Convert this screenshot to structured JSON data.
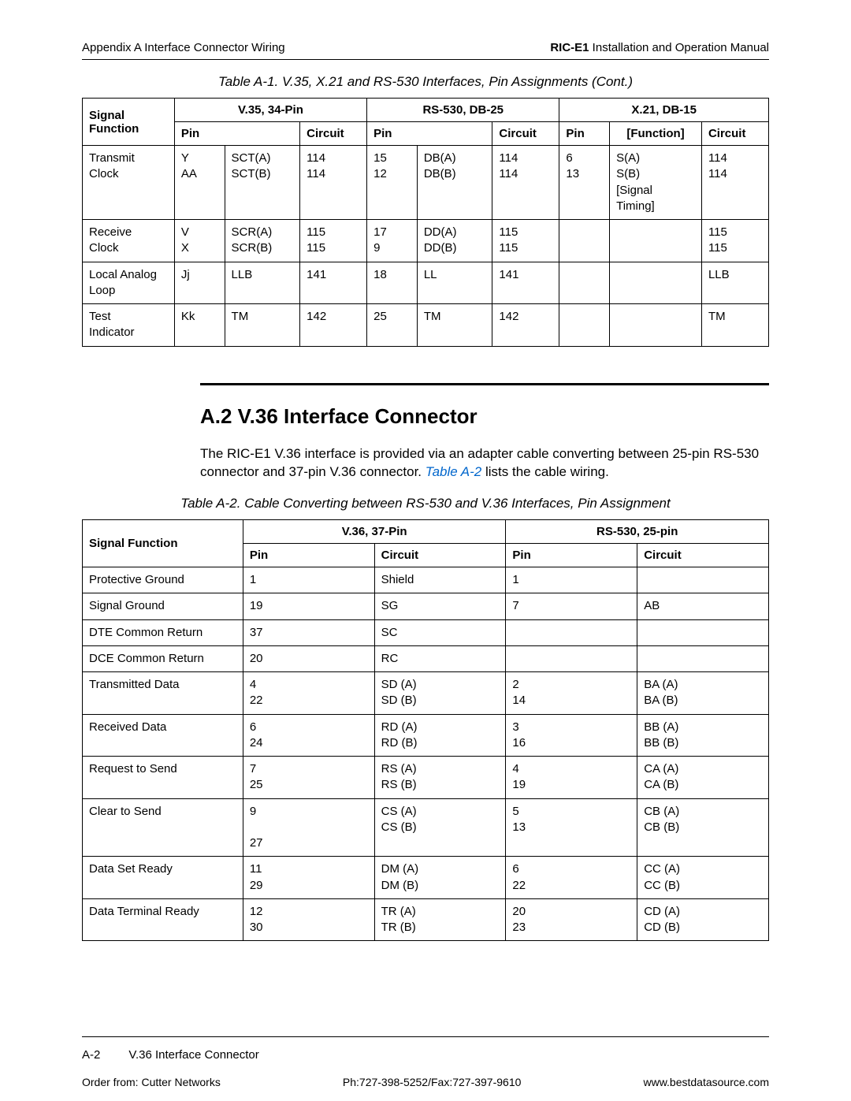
{
  "header": {
    "left": "Appendix A  Interface Connector Wiring",
    "right_bold": "RIC-E1",
    "right_rest": " Installation and Operation Manual"
  },
  "table1": {
    "caption": "Table A-1.  V.35, X.21 and RS-530 Interfaces, Pin Assignments (Cont.)",
    "group_headers": [
      "",
      "V.35, 34-Pin",
      "RS-530, DB-25",
      "X.21, DB-15"
    ],
    "sub_headers": [
      "Signal Function",
      "Pin",
      "",
      "Circuit",
      "Pin",
      "",
      "Circuit",
      "Pin",
      "[Function]",
      "Circuit"
    ],
    "rows": [
      {
        "sf": "Transmit\nClock",
        "p1": "Y\nAA",
        "n1": "SCT(A)\nSCT(B)",
        "c1": "114\n114",
        "p2": "15\n12",
        "n2": "DB(A)\nDB(B)",
        "c2": "114\n114",
        "p3": "6\n13",
        "n3": "S(A)\nS(B)\n[Signal\nTiming]",
        "c3": "114\n114"
      },
      {
        "sf": "Receive\nClock",
        "p1": "V\nX",
        "n1": "SCR(A)\nSCR(B)",
        "c1": "115\n115",
        "p2": "17\n9",
        "n2": "DD(A)\nDD(B)",
        "c2": "115\n115",
        "p3": "",
        "n3": "",
        "c3": "115\n115"
      },
      {
        "sf": "Local Analog\nLoop",
        "p1": "Jj",
        "n1": "LLB",
        "c1": "141",
        "p2": "18",
        "n2": "LL",
        "c2": "141",
        "p3": "",
        "n3": "",
        "c3": "LLB"
      },
      {
        "sf": "Test\nIndicator",
        "p1": "Kk",
        "n1": "TM",
        "c1": "142",
        "p2": "25",
        "n2": "TM",
        "c2": "142",
        "p3": "",
        "n3": "",
        "c3": "TM"
      }
    ]
  },
  "section": {
    "title": "A.2  V.36 Interface Connector",
    "text_pre": "The RIC-E1 V.36 interface is provided via an adapter cable converting between 25-pin RS-530 connector and 37-pin V.36 connector. ",
    "link": "Table A-2",
    "text_post": " lists the cable wiring."
  },
  "table2": {
    "caption": "Table A-2.  Cable Converting between RS-530 and V.36 Interfaces, Pin Assignment",
    "group_headers": [
      "Signal Function",
      "V.36, 37-Pin",
      "RS-530, 25-pin"
    ],
    "sub_headers": [
      "Pin",
      "Circuit",
      "Pin",
      "Circuit"
    ],
    "rows": [
      {
        "sf": "Protective Ground",
        "p1": "1",
        "c1": "Shield",
        "p2": "1",
        "c2": ""
      },
      {
        "sf": "Signal Ground",
        "p1": "19",
        "c1": "SG",
        "p2": "7",
        "c2": "AB"
      },
      {
        "sf": "DTE Common Return",
        "p1": "37",
        "c1": "SC",
        "p2": "",
        "c2": ""
      },
      {
        "sf": "DCE Common Return",
        "p1": "20",
        "c1": "RC",
        "p2": "",
        "c2": ""
      },
      {
        "sf": "Transmitted Data",
        "p1": "4\n22",
        "c1": "SD (A)\nSD (B)",
        "p2": "2\n14",
        "c2": "BA (A)\nBA (B)"
      },
      {
        "sf": "Received Data",
        "p1": "6\n24",
        "c1": "RD (A)\nRD (B)",
        "p2": "3\n16",
        "c2": "BB (A)\nBB (B)"
      },
      {
        "sf": "Request to Send",
        "p1": "7\n25",
        "c1": "RS (A)\nRS (B)",
        "p2": "4\n19",
        "c2": "CA (A)\nCA (B)"
      },
      {
        "sf": "Clear to Send",
        "p1": "9\n\n27",
        "c1": "CS (A)\nCS (B)",
        "p2": "5\n13",
        "c2": "CB (A)\nCB (B)"
      },
      {
        "sf": "Data Set Ready",
        "p1": "11\n29",
        "c1": "DM (A)\nDM (B)",
        "p2": "6\n22",
        "c2": "CC (A)\nCC (B)"
      },
      {
        "sf": "Data Terminal Ready",
        "p1": "12\n30",
        "c1": "TR (A)\nTR (B)",
        "p2": "20\n23",
        "c2": "CD (A)\nCD (B)"
      }
    ]
  },
  "footer": {
    "page": "A-2",
    "topic": "V.36 Interface Connector",
    "order": "Order from: Cutter Networks",
    "phone": "Ph:727-398-5252/Fax:727-397-9610",
    "url": "www.bestdatasource.com"
  }
}
